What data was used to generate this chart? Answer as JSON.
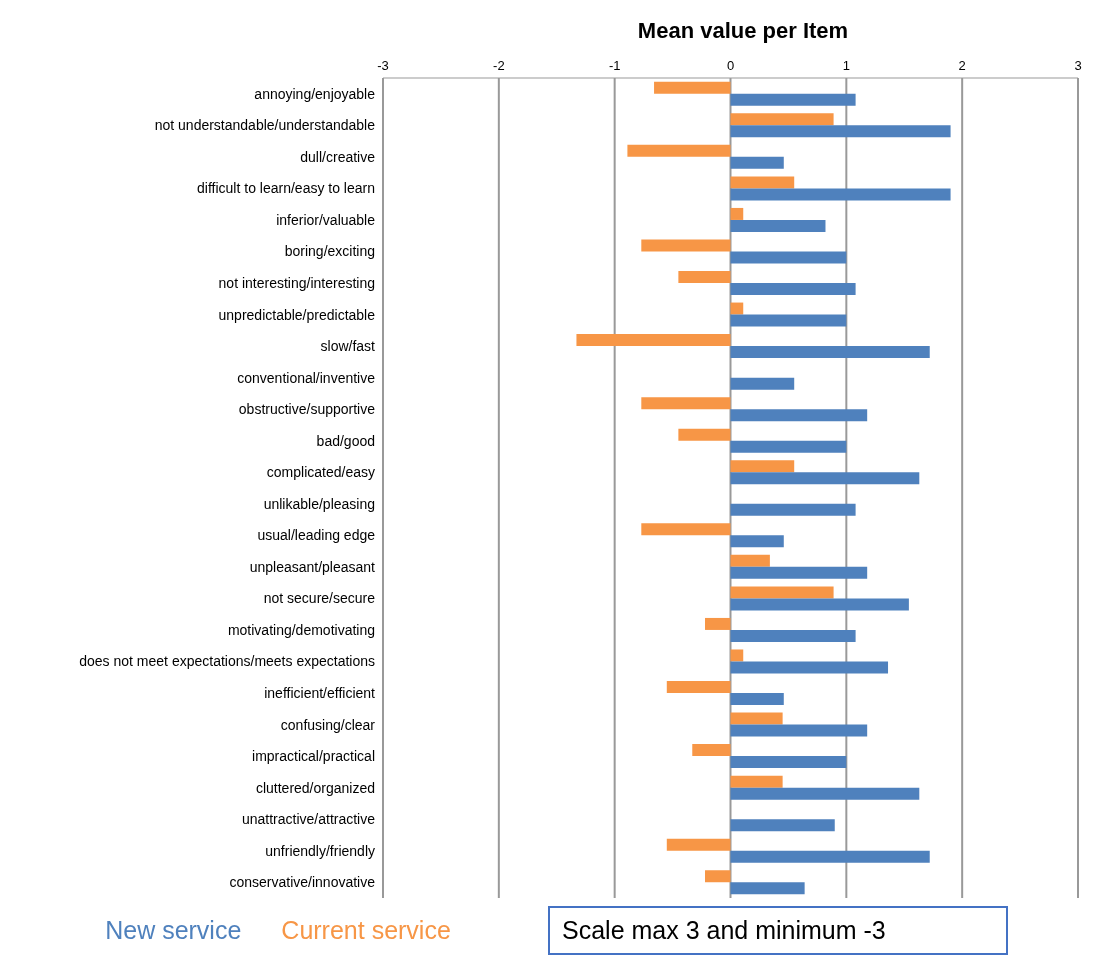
{
  "chart_data": {
    "type": "bar",
    "orientation": "horizontal",
    "title": "Mean value per Item",
    "categories": [
      "annoying/enjoyable",
      "not understandable/understandable",
      "dull/creative",
      "difficult to learn/easy to learn",
      "inferior/valuable",
      "boring/exciting",
      "not interesting/interesting",
      "unpredictable/predictable",
      "slow/fast",
      "conventional/inventive",
      "obstructive/supportive",
      "bad/good",
      "complicated/easy",
      "unlikable/pleasing",
      "usual/leading edge",
      "unpleasant/pleasant",
      "not secure/secure",
      "motivating/demotivating",
      "does not meet expectations/meets expectations",
      "inefficient/efficient",
      "confusing/clear",
      "impractical/practical",
      "cluttered/organized",
      "unattractive/attractive",
      "unfriendly/friendly",
      "conservative/innovative"
    ],
    "series": [
      {
        "name": "New service",
        "color": "#4f81bd",
        "values": [
          1.08,
          1.9,
          0.46,
          1.9,
          0.82,
          1.0,
          1.08,
          1.0,
          1.72,
          0.55,
          1.18,
          1.0,
          1.63,
          1.08,
          0.46,
          1.18,
          1.54,
          1.08,
          1.36,
          0.46,
          1.18,
          1.0,
          1.63,
          0.9,
          1.72,
          0.64
        ]
      },
      {
        "name": "Current service",
        "color": "#f79646",
        "values": [
          -0.66,
          0.89,
          -0.89,
          0.55,
          0.11,
          -0.77,
          -0.45,
          0.11,
          -1.33,
          0,
          -0.77,
          -0.45,
          0.55,
          0,
          -0.77,
          0.34,
          0.89,
          -0.22,
          0.11,
          -0.55,
          0.45,
          -0.33,
          0.45,
          0,
          -0.55,
          -0.22
        ]
      }
    ],
    "xlim": [
      -3,
      3
    ],
    "xticks": [
      -3,
      -2,
      -1,
      0,
      1,
      2,
      3
    ],
    "grid": "x",
    "legend": "bottom",
    "annotations": [
      "Scale max 3 and minimum -3"
    ]
  }
}
